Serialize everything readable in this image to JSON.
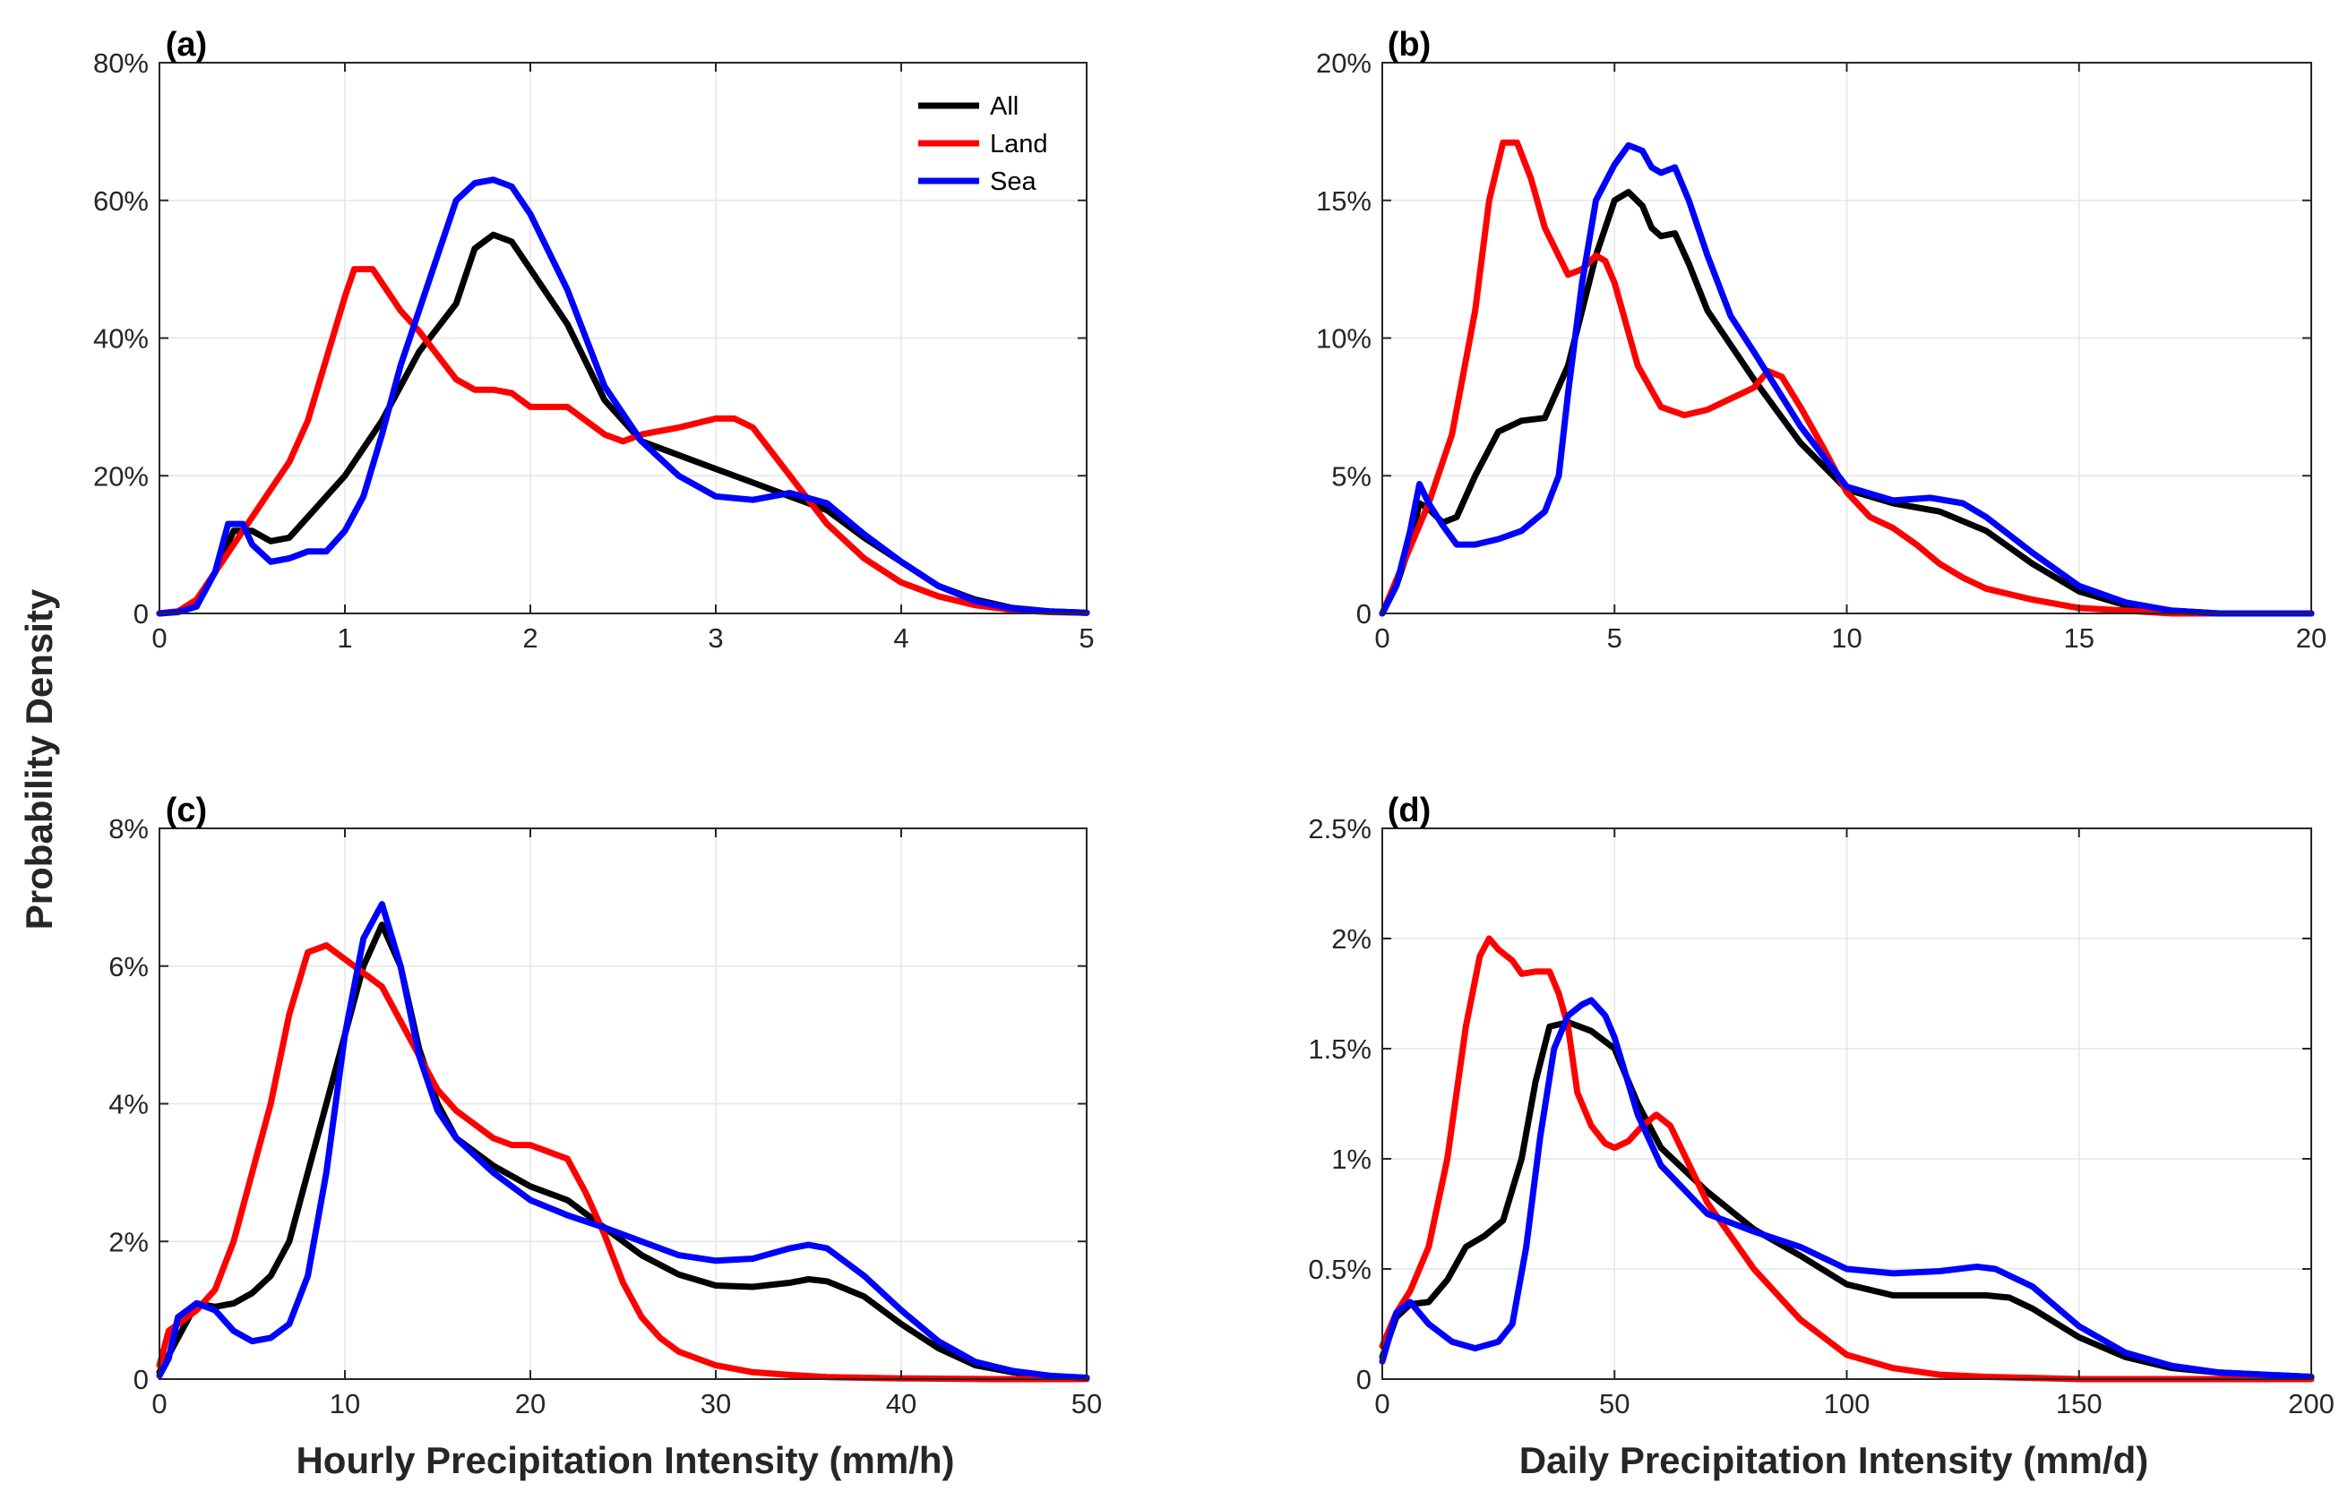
{
  "figure": {
    "ylabel": "Probability Density",
    "xlabel_left": "Hourly Precipitation Intensity (mm/h)",
    "xlabel_right": "Daily Precipitation Intensity (mm/d)"
  },
  "colors": {
    "All": "#000000",
    "Land": "#ff0000",
    "Sea": "#0000ff",
    "grid": "#e6e6e6",
    "axes": "#262626"
  },
  "legend": [
    {
      "name": "All",
      "color": "#000000"
    },
    {
      "name": "Land",
      "color": "#ff0000"
    },
    {
      "name": "Sea",
      "color": "#0000ff"
    }
  ],
  "chart_data": [
    {
      "id": "a",
      "panel_label": "(a)",
      "type": "line",
      "xlabel": "Hourly Precipitation Intensity (mm/h)",
      "ylabel": "Probability Density",
      "xlim": [
        0,
        5
      ],
      "ylim": [
        0,
        0.8
      ],
      "xticks": [
        0,
        1,
        2,
        3,
        4,
        5
      ],
      "xtick_labels": [
        "0",
        "1",
        "2",
        "3",
        "4",
        "5"
      ],
      "yticks": [
        0,
        0.2,
        0.4,
        0.6,
        0.8
      ],
      "ytick_labels": [
        "0",
        "20%",
        "40%",
        "60%",
        "80%"
      ],
      "grid": true,
      "legend": "top-right",
      "series": [
        {
          "name": "All",
          "x": [
            0,
            0.1,
            0.2,
            0.3,
            0.4,
            0.5,
            0.6,
            0.7,
            0.8,
            0.9,
            1.0,
            1.2,
            1.4,
            1.6,
            1.7,
            1.8,
            1.9,
            2.0,
            2.2,
            2.4,
            2.6,
            2.8,
            3.0,
            3.2,
            3.4,
            3.6,
            3.8,
            4.0,
            4.2,
            4.4,
            4.6,
            4.8,
            5.0
          ],
          "y": [
            0,
            0.003,
            0.015,
            0.06,
            0.12,
            0.12,
            0.105,
            0.11,
            0.14,
            0.17,
            0.2,
            0.28,
            0.38,
            0.45,
            0.53,
            0.55,
            0.54,
            0.5,
            0.42,
            0.31,
            0.25,
            0.23,
            0.21,
            0.19,
            0.17,
            0.15,
            0.11,
            0.075,
            0.04,
            0.02,
            0.008,
            0.003,
            0.001
          ]
        },
        {
          "name": "Land",
          "x": [
            0,
            0.1,
            0.2,
            0.3,
            0.4,
            0.5,
            0.6,
            0.7,
            0.8,
            0.9,
            1.0,
            1.05,
            1.15,
            1.2,
            1.3,
            1.4,
            1.6,
            1.7,
            1.8,
            1.9,
            2.0,
            2.2,
            2.4,
            2.5,
            2.6,
            2.8,
            3.0,
            3.1,
            3.2,
            3.4,
            3.6,
            3.8,
            4.0,
            4.2,
            4.4,
            4.6,
            4.8,
            5.0
          ],
          "y": [
            0,
            0.003,
            0.02,
            0.06,
            0.1,
            0.14,
            0.18,
            0.22,
            0.28,
            0.37,
            0.46,
            0.5,
            0.5,
            0.48,
            0.44,
            0.41,
            0.34,
            0.325,
            0.325,
            0.32,
            0.3,
            0.3,
            0.26,
            0.25,
            0.26,
            0.27,
            0.283,
            0.283,
            0.27,
            0.2,
            0.13,
            0.08,
            0.045,
            0.025,
            0.012,
            0.005,
            0.002,
            0.001
          ]
        },
        {
          "name": "Sea",
          "x": [
            0,
            0.1,
            0.2,
            0.3,
            0.37,
            0.45,
            0.5,
            0.6,
            0.7,
            0.8,
            0.9,
            1.0,
            1.1,
            1.2,
            1.3,
            1.4,
            1.5,
            1.6,
            1.7,
            1.8,
            1.9,
            2.0,
            2.2,
            2.4,
            2.6,
            2.8,
            3.0,
            3.2,
            3.4,
            3.6,
            3.8,
            4.0,
            4.2,
            4.4,
            4.6,
            4.8,
            5.0
          ],
          "y": [
            0,
            0.002,
            0.01,
            0.06,
            0.13,
            0.13,
            0.1,
            0.075,
            0.08,
            0.09,
            0.09,
            0.12,
            0.17,
            0.26,
            0.36,
            0.44,
            0.52,
            0.6,
            0.625,
            0.63,
            0.62,
            0.58,
            0.47,
            0.33,
            0.25,
            0.2,
            0.17,
            0.165,
            0.175,
            0.16,
            0.115,
            0.075,
            0.04,
            0.018,
            0.007,
            0.003,
            0.001
          ]
        }
      ]
    },
    {
      "id": "b",
      "panel_label": "(b)",
      "type": "line",
      "xlabel": "Daily Precipitation Intensity (mm/d)",
      "ylabel": "Probability Density",
      "xlim": [
        0,
        20
      ],
      "ylim": [
        0,
        0.2
      ],
      "xticks": [
        0,
        5,
        10,
        15,
        20
      ],
      "xtick_labels": [
        "0",
        "5",
        "10",
        "15",
        "20"
      ],
      "yticks": [
        0,
        0.05,
        0.1,
        0.15,
        0.2
      ],
      "ytick_labels": [
        "0",
        "5%",
        "10%",
        "15%",
        "20%"
      ],
      "grid": true,
      "series": [
        {
          "name": "All",
          "x": [
            0,
            0.3,
            0.6,
            0.8,
            1.0,
            1.3,
            1.6,
            2.0,
            2.5,
            3.0,
            3.5,
            4.0,
            4.3,
            4.6,
            5.0,
            5.3,
            5.6,
            5.8,
            6.0,
            6.3,
            6.6,
            7.0,
            8.0,
            9.0,
            10.0,
            11.0,
            12.0,
            13.0,
            14.0,
            15.0,
            16.0,
            17.0,
            18.0,
            19.0,
            20.0
          ],
          "y": [
            0,
            0.01,
            0.025,
            0.04,
            0.038,
            0.033,
            0.035,
            0.05,
            0.066,
            0.07,
            0.071,
            0.09,
            0.11,
            0.13,
            0.15,
            0.153,
            0.148,
            0.14,
            0.137,
            0.138,
            0.127,
            0.11,
            0.085,
            0.062,
            0.045,
            0.04,
            0.037,
            0.03,
            0.018,
            0.008,
            0.003,
            0.001,
            0,
            0,
            0
          ]
        },
        {
          "name": "Land",
          "x": [
            0,
            0.5,
            1.0,
            1.5,
            2.0,
            2.3,
            2.6,
            2.9,
            3.2,
            3.5,
            4.0,
            4.3,
            4.6,
            4.8,
            5.0,
            5.5,
            6.0,
            6.5,
            7.0,
            7.5,
            8.0,
            8.3,
            8.6,
            9.0,
            9.5,
            10.0,
            10.5,
            11.0,
            11.5,
            12.0,
            12.5,
            13.0,
            14.0,
            15.0,
            16.0,
            17.0,
            18.0,
            20.0
          ],
          "y": [
            0,
            0.02,
            0.04,
            0.065,
            0.11,
            0.15,
            0.171,
            0.171,
            0.158,
            0.14,
            0.123,
            0.125,
            0.13,
            0.128,
            0.12,
            0.09,
            0.075,
            0.072,
            0.074,
            0.078,
            0.082,
            0.088,
            0.086,
            0.075,
            0.06,
            0.044,
            0.035,
            0.031,
            0.025,
            0.018,
            0.013,
            0.009,
            0.005,
            0.002,
            0.001,
            0,
            0,
            0
          ]
        },
        {
          "name": "Sea",
          "x": [
            0,
            0.3,
            0.6,
            0.8,
            1.0,
            1.3,
            1.6,
            2.0,
            2.5,
            3.0,
            3.5,
            3.8,
            4.0,
            4.3,
            4.6,
            5.0,
            5.3,
            5.6,
            5.8,
            6.0,
            6.3,
            6.6,
            7.0,
            7.5,
            8.0,
            9.0,
            10.0,
            11.0,
            11.8,
            12.5,
            13.0,
            14.0,
            15.0,
            16.0,
            17.0,
            18.0,
            20.0
          ],
          "y": [
            0,
            0.01,
            0.03,
            0.047,
            0.04,
            0.032,
            0.025,
            0.025,
            0.027,
            0.03,
            0.037,
            0.05,
            0.08,
            0.12,
            0.15,
            0.163,
            0.17,
            0.168,
            0.162,
            0.16,
            0.162,
            0.15,
            0.13,
            0.108,
            0.095,
            0.068,
            0.046,
            0.041,
            0.042,
            0.04,
            0.035,
            0.022,
            0.01,
            0.004,
            0.001,
            0,
            0
          ]
        }
      ]
    },
    {
      "id": "c",
      "panel_label": "(c)",
      "type": "line",
      "xlabel": "Hourly Precipitation Intensity (mm/h)",
      "ylabel": "Probability Density",
      "xlim": [
        0,
        50
      ],
      "ylim": [
        0,
        0.08
      ],
      "xticks": [
        0,
        10,
        20,
        30,
        40,
        50
      ],
      "xtick_labels": [
        "0",
        "10",
        "20",
        "30",
        "40",
        "50"
      ],
      "yticks": [
        0,
        0.02,
        0.04,
        0.06,
        0.08
      ],
      "ytick_labels": [
        "0",
        "2%",
        "4%",
        "6%",
        "8%"
      ],
      "grid": true,
      "series": [
        {
          "name": "All",
          "x": [
            0,
            1,
            2,
            3,
            4,
            5,
            6,
            7,
            8,
            9,
            10,
            11,
            12,
            13,
            14,
            15,
            16,
            18,
            20,
            22,
            24,
            26,
            28,
            30,
            32,
            34,
            35,
            36,
            38,
            40,
            42,
            44,
            46,
            48,
            50
          ],
          "y": [
            0.001,
            0.006,
            0.011,
            0.0105,
            0.011,
            0.0125,
            0.015,
            0.02,
            0.03,
            0.04,
            0.05,
            0.06,
            0.066,
            0.06,
            0.048,
            0.04,
            0.035,
            0.031,
            0.028,
            0.026,
            0.022,
            0.018,
            0.0152,
            0.0136,
            0.0134,
            0.014,
            0.0145,
            0.0142,
            0.012,
            0.008,
            0.0045,
            0.002,
            0.001,
            0.0004,
            0.0002
          ]
        },
        {
          "name": "Land",
          "x": [
            0,
            0.5,
            1,
            2,
            3,
            4,
            5,
            6,
            7,
            8,
            9,
            10,
            11,
            12,
            13,
            14,
            15,
            16,
            17,
            18,
            19,
            20,
            21,
            22,
            23,
            24,
            25,
            26,
            27,
            28,
            30,
            32,
            34,
            36,
            38,
            40,
            45,
            50
          ],
          "y": [
            0.002,
            0.007,
            0.008,
            0.01,
            0.013,
            0.02,
            0.03,
            0.04,
            0.053,
            0.062,
            0.063,
            0.061,
            0.059,
            0.057,
            0.052,
            0.047,
            0.042,
            0.039,
            0.037,
            0.035,
            0.034,
            0.034,
            0.033,
            0.032,
            0.027,
            0.021,
            0.014,
            0.009,
            0.006,
            0.004,
            0.002,
            0.001,
            0.0006,
            0.0003,
            0.0002,
            0.0001,
            0,
            0
          ]
        },
        {
          "name": "Sea",
          "x": [
            0,
            0.5,
            1,
            2,
            3,
            4,
            5,
            6,
            7,
            8,
            9,
            10,
            11,
            12,
            13,
            14,
            15,
            16,
            18,
            20,
            22,
            24,
            26,
            28,
            30,
            32,
            34,
            35,
            36,
            38,
            40,
            42,
            44,
            46,
            48,
            50
          ],
          "y": [
            0.0005,
            0.003,
            0.009,
            0.011,
            0.01,
            0.007,
            0.0055,
            0.006,
            0.008,
            0.015,
            0.03,
            0.05,
            0.064,
            0.069,
            0.06,
            0.047,
            0.039,
            0.035,
            0.03,
            0.026,
            0.0238,
            0.022,
            0.02,
            0.018,
            0.0172,
            0.0175,
            0.019,
            0.0195,
            0.019,
            0.015,
            0.01,
            0.0055,
            0.0025,
            0.0012,
            0.0005,
            0.0002
          ]
        }
      ]
    },
    {
      "id": "d",
      "panel_label": "(d)",
      "type": "line",
      "xlabel": "Daily Precipitation Intensity (mm/d)",
      "ylabel": "Probability Density",
      "xlim": [
        0,
        200
      ],
      "ylim": [
        0,
        0.025
      ],
      "xticks": [
        0,
        50,
        100,
        150,
        200
      ],
      "xtick_labels": [
        "0",
        "50",
        "100",
        "150",
        "200"
      ],
      "yticks": [
        0,
        0.005,
        0.01,
        0.015,
        0.02,
        0.025
      ],
      "ytick_labels": [
        "0",
        "0.5%",
        "1%",
        "1.5%",
        "2%",
        "2.5%"
      ],
      "grid": true,
      "series": [
        {
          "name": "All",
          "x": [
            0,
            3,
            6,
            10,
            14,
            18,
            22,
            26,
            30,
            33,
            36,
            40,
            45,
            50,
            55,
            60,
            70,
            80,
            90,
            100,
            110,
            120,
            130,
            135,
            140,
            150,
            160,
            170,
            180,
            190,
            200
          ],
          "y": [
            0.001,
            0.0028,
            0.0034,
            0.0035,
            0.0045,
            0.006,
            0.0065,
            0.0072,
            0.01,
            0.0135,
            0.016,
            0.0162,
            0.0158,
            0.015,
            0.0125,
            0.0105,
            0.0085,
            0.0068,
            0.0056,
            0.0043,
            0.0038,
            0.0038,
            0.0038,
            0.0037,
            0.0032,
            0.0019,
            0.001,
            0.0005,
            0.0003,
            0.0002,
            0.0001
          ]
        },
        {
          "name": "Land",
          "x": [
            0,
            3,
            6,
            10,
            14,
            18,
            21,
            23,
            25,
            28,
            30,
            33,
            36,
            38,
            40,
            42,
            45,
            48,
            50,
            53,
            56,
            59,
            62,
            65,
            70,
            75,
            80,
            90,
            100,
            110,
            120,
            130,
            150,
            170,
            200
          ],
          "y": [
            0.0015,
            0.003,
            0.004,
            0.006,
            0.01,
            0.016,
            0.0192,
            0.02,
            0.0195,
            0.019,
            0.0184,
            0.0185,
            0.0185,
            0.0175,
            0.016,
            0.013,
            0.0115,
            0.0107,
            0.0105,
            0.0108,
            0.0115,
            0.012,
            0.0115,
            0.0102,
            0.008,
            0.0065,
            0.005,
            0.0027,
            0.0011,
            0.0005,
            0.0002,
            0.0001,
            0,
            0,
            0
          ]
        },
        {
          "name": "Sea",
          "x": [
            0,
            3,
            6,
            10,
            15,
            20,
            25,
            28,
            31,
            34,
            37,
            40,
            43,
            45,
            48,
            50,
            55,
            60,
            70,
            80,
            90,
            100,
            110,
            120,
            128,
            132,
            140,
            150,
            160,
            170,
            180,
            190,
            200
          ],
          "y": [
            0.0008,
            0.003,
            0.0035,
            0.0025,
            0.0017,
            0.0014,
            0.0017,
            0.0025,
            0.006,
            0.011,
            0.015,
            0.0165,
            0.017,
            0.0172,
            0.0165,
            0.0155,
            0.012,
            0.0097,
            0.0075,
            0.0067,
            0.006,
            0.005,
            0.0048,
            0.0049,
            0.0051,
            0.005,
            0.0042,
            0.0024,
            0.0012,
            0.0006,
            0.0003,
            0.0002,
            0.0001
          ]
        }
      ]
    }
  ]
}
